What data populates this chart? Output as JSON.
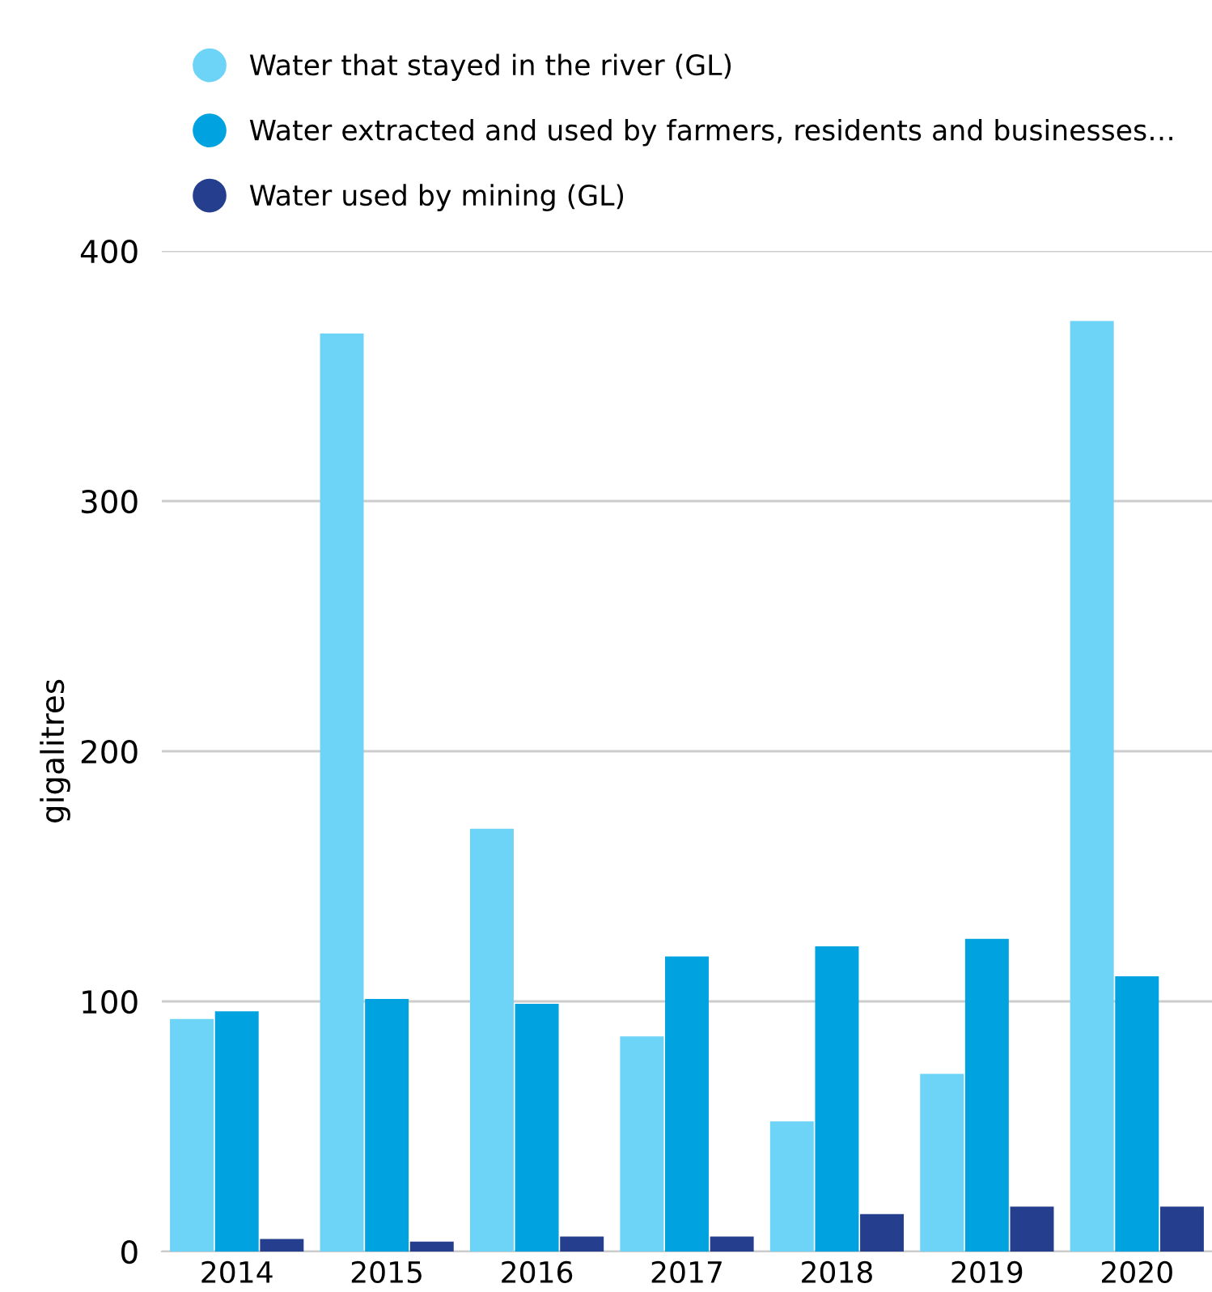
{
  "chart_data": {
    "type": "bar",
    "ylabel": "gigalitres",
    "categories": [
      "2014",
      "2015",
      "2016",
      "2017",
      "2018",
      "2019",
      "2020"
    ],
    "series": [
      {
        "name": "Water that stayed in the river (GL)",
        "color": "#6dd3f7",
        "values": [
          93,
          367,
          169,
          86,
          52,
          71,
          372
        ]
      },
      {
        "name": "Water extracted and used by farmers, residents and businesses…",
        "color": "#00a3e0",
        "values": [
          96,
          101,
          99,
          118,
          122,
          125,
          110
        ]
      },
      {
        "name": "Water used by mining (GL)",
        "color": "#253f8e",
        "values": [
          5,
          4,
          6,
          6,
          15,
          18,
          18
        ]
      }
    ],
    "ylim": [
      0,
      400
    ],
    "yticks": [
      0,
      100,
      200,
      300,
      400
    ],
    "grid": "y",
    "legend": "top left",
    "marker": "circle"
  }
}
